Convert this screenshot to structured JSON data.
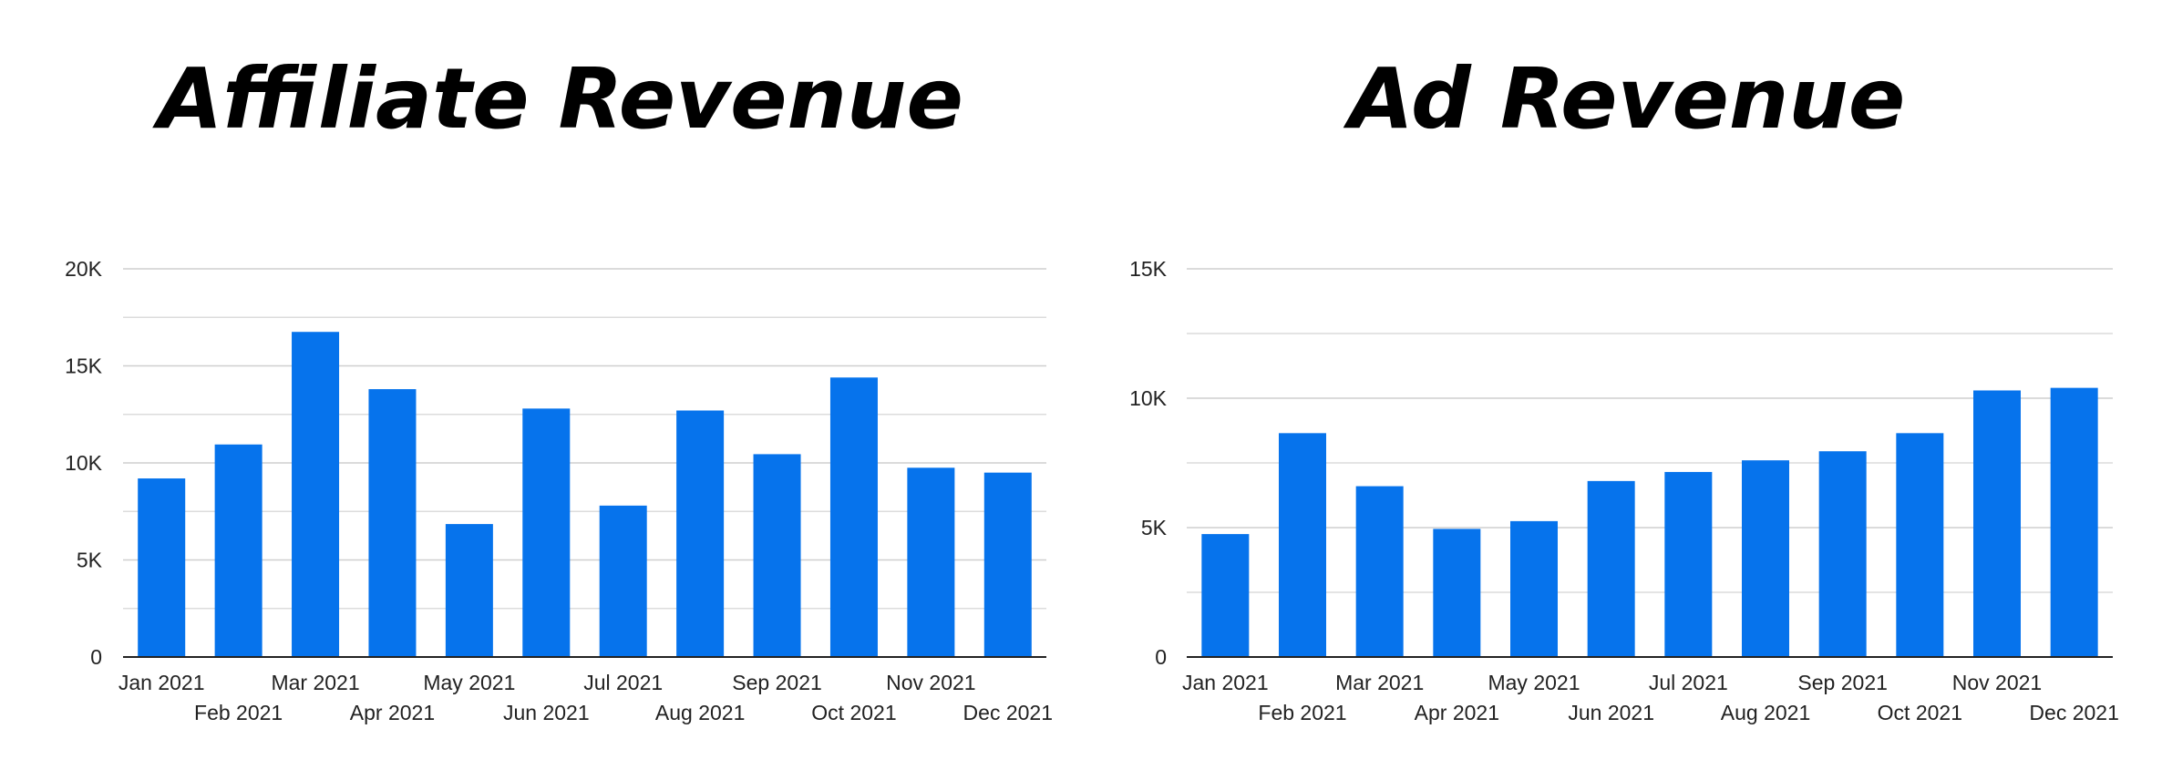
{
  "chart_data": [
    {
      "type": "bar",
      "title": "Affiliate Revenue",
      "xlabel": "",
      "ylabel": "",
      "categories": [
        "Jan 2021",
        "Feb 2021",
        "Mar 2021",
        "Apr 2021",
        "May 2021",
        "Jun 2021",
        "Jul 2021",
        "Aug 2021",
        "Sep 2021",
        "Oct 2021",
        "Nov 2021",
        "Dec 2021"
      ],
      "values": [
        9200,
        10950,
        16750,
        13800,
        6850,
        12800,
        7800,
        12700,
        10450,
        14400,
        9750,
        9500
      ],
      "ylim": [
        0,
        20000
      ],
      "yticks": [
        "0",
        "5K",
        "10K",
        "15K",
        "20K"
      ],
      "grid": true,
      "legend": "none",
      "bar_color": "#0673ec"
    },
    {
      "type": "bar",
      "title": "Ad Revenue",
      "xlabel": "",
      "ylabel": "",
      "categories": [
        "Jan 2021",
        "Feb 2021",
        "Mar 2021",
        "Apr 2021",
        "May 2021",
        "Jun 2021",
        "Jul 2021",
        "Aug 2021",
        "Sep 2021",
        "Oct 2021",
        "Nov 2021",
        "Dec 2021"
      ],
      "values": [
        4750,
        8650,
        6600,
        4950,
        5250,
        6800,
        7150,
        7600,
        7950,
        8650,
        10300,
        10400
      ],
      "ylim": [
        0,
        15000
      ],
      "yticks": [
        "0",
        "5K",
        "10K",
        "15K"
      ],
      "grid": true,
      "legend": "none",
      "bar_color": "#0673ec"
    }
  ]
}
